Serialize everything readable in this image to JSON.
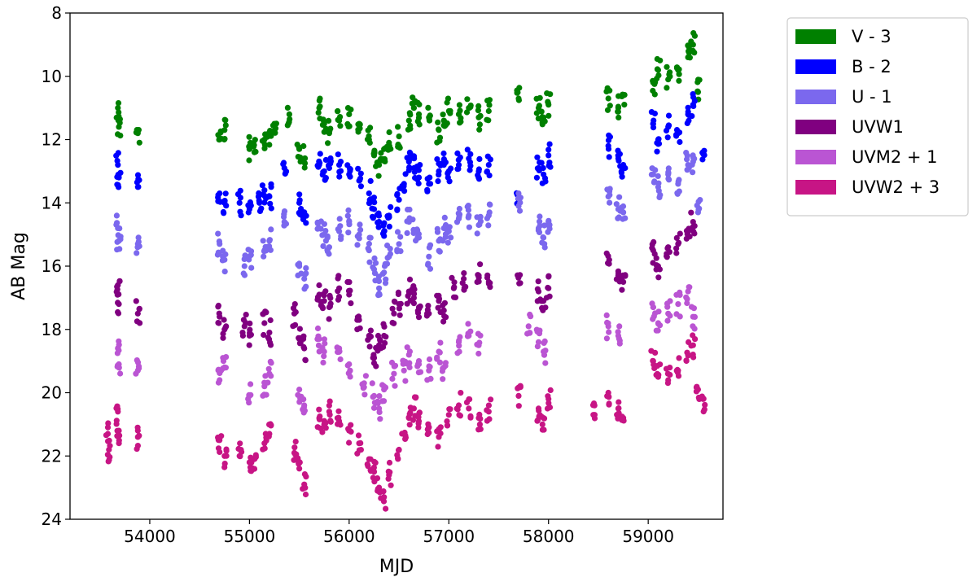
{
  "chart_data": {
    "type": "scatter",
    "title": "",
    "xlabel": "MJD",
    "ylabel": "AB Mag",
    "xlim": [
      53200,
      59750
    ],
    "ylim": [
      24,
      8
    ],
    "y_inverted": true,
    "grid": false,
    "legend_placement": "outside-right-top",
    "x_ticks": [
      54000,
      55000,
      56000,
      57000,
      58000,
      59000
    ],
    "y_ticks": [
      8,
      10,
      12,
      14,
      16,
      18,
      20,
      22,
      24
    ],
    "series": [
      {
        "name": "V - 3",
        "color": "#008000",
        "points": [
          [
            53680,
            11.0
          ],
          [
            53690,
            11.6
          ],
          [
            53880,
            11.8
          ],
          [
            54700,
            12.0
          ],
          [
            54750,
            11.7
          ],
          [
            55000,
            12.3
          ],
          [
            55050,
            12.4
          ],
          [
            55150,
            12.0
          ],
          [
            55200,
            11.8
          ],
          [
            55250,
            11.5
          ],
          [
            55400,
            11.2
          ],
          [
            55500,
            12.3
          ],
          [
            55550,
            12.6
          ],
          [
            55700,
            11.0
          ],
          [
            55750,
            11.5
          ],
          [
            55800,
            11.8
          ],
          [
            55900,
            11.4
          ],
          [
            56000,
            11.2
          ],
          [
            56100,
            11.5
          ],
          [
            56200,
            12.0
          ],
          [
            56250,
            12.5
          ],
          [
            56300,
            12.8
          ],
          [
            56350,
            12.3
          ],
          [
            56400,
            12.1
          ],
          [
            56500,
            11.9
          ],
          [
            56600,
            11.4
          ],
          [
            56650,
            11.0
          ],
          [
            56700,
            11.2
          ],
          [
            56800,
            11.3
          ],
          [
            56900,
            11.7
          ],
          [
            56950,
            11.4
          ],
          [
            57000,
            11.1
          ],
          [
            57100,
            11.2
          ],
          [
            57200,
            11.0
          ],
          [
            57300,
            11.3
          ],
          [
            57400,
            11.1
          ],
          [
            57700,
            10.7
          ],
          [
            57900,
            11.0
          ],
          [
            57950,
            11.3
          ],
          [
            58000,
            10.9
          ],
          [
            58600,
            10.7
          ],
          [
            58700,
            11.0
          ],
          [
            58750,
            10.6
          ],
          [
            59050,
            10.2
          ],
          [
            59100,
            9.8
          ],
          [
            59200,
            10.1
          ],
          [
            59300,
            9.8
          ],
          [
            59400,
            9.4
          ],
          [
            59450,
            9.0
          ],
          [
            59500,
            10.5
          ]
        ]
      },
      {
        "name": "B - 2",
        "color": "#0000ff",
        "points": [
          [
            53680,
            12.8
          ],
          [
            53690,
            13.2
          ],
          [
            53880,
            13.5
          ],
          [
            54700,
            13.7
          ],
          [
            54750,
            14.0
          ],
          [
            54900,
            14.0
          ],
          [
            55000,
            14.2
          ],
          [
            55100,
            14.0
          ],
          [
            55150,
            13.6
          ],
          [
            55200,
            13.8
          ],
          [
            55350,
            12.9
          ],
          [
            55500,
            14.0
          ],
          [
            55550,
            14.3
          ],
          [
            55700,
            12.8
          ],
          [
            55750,
            13.0
          ],
          [
            55800,
            12.9
          ],
          [
            55900,
            12.8
          ],
          [
            56000,
            13.1
          ],
          [
            56100,
            13.3
          ],
          [
            56200,
            13.7
          ],
          [
            56250,
            14.2
          ],
          [
            56300,
            14.6
          ],
          [
            56350,
            14.9
          ],
          [
            56400,
            14.4
          ],
          [
            56500,
            13.9
          ],
          [
            56550,
            13.4
          ],
          [
            56600,
            12.7
          ],
          [
            56650,
            12.9
          ],
          [
            56700,
            13.2
          ],
          [
            56800,
            13.4
          ],
          [
            56900,
            13.0
          ],
          [
            56950,
            12.8
          ],
          [
            57000,
            13.0
          ],
          [
            57100,
            12.8
          ],
          [
            57200,
            12.6
          ],
          [
            57300,
            13.0
          ],
          [
            57400,
            12.8
          ],
          [
            57700,
            14.0
          ],
          [
            57900,
            12.9
          ],
          [
            57950,
            13.1
          ],
          [
            58000,
            12.5
          ],
          [
            58600,
            12.2
          ],
          [
            58700,
            12.6
          ],
          [
            58750,
            12.8
          ],
          [
            59050,
            11.5
          ],
          [
            59100,
            12.0
          ],
          [
            59200,
            11.6
          ],
          [
            59300,
            11.8
          ],
          [
            59400,
            11.2
          ],
          [
            59450,
            10.9
          ],
          [
            59550,
            12.4
          ]
        ]
      },
      {
        "name": "U - 1",
        "color": "#7b68ee",
        "points": [
          [
            53680,
            14.8
          ],
          [
            53690,
            15.2
          ],
          [
            53880,
            15.3
          ],
          [
            54700,
            15.3
          ],
          [
            54750,
            15.8
          ],
          [
            54950,
            16.0
          ],
          [
            55000,
            15.7
          ],
          [
            55150,
            15.5
          ],
          [
            55200,
            15.2
          ],
          [
            55350,
            14.6
          ],
          [
            55500,
            16.0
          ],
          [
            55550,
            16.4
          ],
          [
            55700,
            14.8
          ],
          [
            55750,
            15.0
          ],
          [
            55800,
            15.4
          ],
          [
            55900,
            14.9
          ],
          [
            56000,
            14.6
          ],
          [
            56100,
            15.0
          ],
          [
            56200,
            15.5
          ],
          [
            56250,
            16.1
          ],
          [
            56300,
            16.7
          ],
          [
            56350,
            16.2
          ],
          [
            56400,
            15.7
          ],
          [
            56500,
            15.3
          ],
          [
            56600,
            14.6
          ],
          [
            56650,
            14.9
          ],
          [
            56700,
            15.1
          ],
          [
            56800,
            15.7
          ],
          [
            56900,
            15.2
          ],
          [
            56950,
            14.8
          ],
          [
            57000,
            14.9
          ],
          [
            57100,
            14.5
          ],
          [
            57200,
            14.4
          ],
          [
            57300,
            14.7
          ],
          [
            57400,
            14.4
          ],
          [
            57700,
            14.1
          ],
          [
            57900,
            14.8
          ],
          [
            57950,
            15.1
          ],
          [
            58000,
            14.6
          ],
          [
            58600,
            13.8
          ],
          [
            58700,
            14.2
          ],
          [
            58750,
            14.3
          ],
          [
            59050,
            13.1
          ],
          [
            59100,
            13.5
          ],
          [
            59200,
            13.1
          ],
          [
            59300,
            13.4
          ],
          [
            59400,
            12.8
          ],
          [
            59450,
            12.7
          ],
          [
            59500,
            14.3
          ]
        ]
      },
      {
        "name": "UVW1",
        "color": "#800080",
        "points": [
          [
            53680,
            16.6
          ],
          [
            53690,
            17.2
          ],
          [
            53880,
            17.5
          ],
          [
            54700,
            17.6
          ],
          [
            54750,
            18.0
          ],
          [
            54950,
            17.9
          ],
          [
            55000,
            18.2
          ],
          [
            55150,
            17.8
          ],
          [
            55200,
            18.1
          ],
          [
            55450,
            17.5
          ],
          [
            55500,
            18.3
          ],
          [
            55550,
            18.6
          ],
          [
            55700,
            16.9
          ],
          [
            55750,
            17.1
          ],
          [
            55800,
            17.3
          ],
          [
            55900,
            16.7
          ],
          [
            56000,
            16.9
          ],
          [
            56100,
            17.7
          ],
          [
            56200,
            18.2
          ],
          [
            56250,
            18.9
          ],
          [
            56300,
            18.5
          ],
          [
            56350,
            18.2
          ],
          [
            56450,
            17.5
          ],
          [
            56500,
            17.2
          ],
          [
            56600,
            16.8
          ],
          [
            56650,
            17.0
          ],
          [
            56700,
            17.3
          ],
          [
            56800,
            17.5
          ],
          [
            56900,
            17.1
          ],
          [
            56950,
            17.4
          ],
          [
            57050,
            16.7
          ],
          [
            57150,
            16.4
          ],
          [
            57300,
            16.3
          ],
          [
            57400,
            16.5
          ],
          [
            57700,
            16.3
          ],
          [
            57900,
            16.8
          ],
          [
            57950,
            17.1
          ],
          [
            58000,
            16.7
          ],
          [
            58600,
            15.9
          ],
          [
            58700,
            16.3
          ],
          [
            58750,
            16.5
          ],
          [
            59050,
            15.5
          ],
          [
            59100,
            16.0
          ],
          [
            59200,
            15.4
          ],
          [
            59300,
            15.3
          ],
          [
            59400,
            14.9
          ],
          [
            59450,
            14.6
          ]
        ]
      },
      {
        "name": "UVM2 + 1",
        "color": "#ba55d3",
        "points": [
          [
            53680,
            18.6
          ],
          [
            53690,
            19.1
          ],
          [
            53880,
            19.3
          ],
          [
            54700,
            19.6
          ],
          [
            54750,
            19.2
          ],
          [
            55000,
            20.1
          ],
          [
            55150,
            19.8
          ],
          [
            55200,
            19.4
          ],
          [
            55500,
            19.9
          ],
          [
            55550,
            20.4
          ],
          [
            55700,
            18.3
          ],
          [
            55750,
            18.7
          ],
          [
            55900,
            18.6
          ],
          [
            56000,
            19.1
          ],
          [
            56150,
            19.7
          ],
          [
            56250,
            20.1
          ],
          [
            56300,
            20.5
          ],
          [
            56350,
            19.9
          ],
          [
            56450,
            19.4
          ],
          [
            56550,
            19.3
          ],
          [
            56600,
            18.8
          ],
          [
            56700,
            19.0
          ],
          [
            56800,
            19.3
          ],
          [
            56900,
            18.7
          ],
          [
            56950,
            19.2
          ],
          [
            57100,
            18.4
          ],
          [
            57200,
            18.2
          ],
          [
            57300,
            18.5
          ],
          [
            57800,
            17.9
          ],
          [
            57900,
            18.4
          ],
          [
            57950,
            18.7
          ],
          [
            58600,
            17.9
          ],
          [
            58700,
            18.2
          ],
          [
            59050,
            17.3
          ],
          [
            59100,
            17.8
          ],
          [
            59200,
            17.5
          ],
          [
            59300,
            17.2
          ],
          [
            59400,
            16.8
          ],
          [
            59450,
            17.6
          ]
        ]
      },
      {
        "name": "UVW2 + 3",
        "color": "#c71585",
        "points": [
          [
            53580,
            21.3
          ],
          [
            53590,
            21.8
          ],
          [
            53680,
            20.6
          ],
          [
            53690,
            21.2
          ],
          [
            53880,
            21.4
          ],
          [
            54700,
            21.5
          ],
          [
            54750,
            22.0
          ],
          [
            54900,
            22.0
          ],
          [
            55000,
            22.2
          ],
          [
            55050,
            22.1
          ],
          [
            55150,
            21.6
          ],
          [
            55200,
            21.3
          ],
          [
            55450,
            21.9
          ],
          [
            55500,
            22.4
          ],
          [
            55550,
            22.9
          ],
          [
            55700,
            20.8
          ],
          [
            55750,
            21.0
          ],
          [
            55800,
            20.6
          ],
          [
            55900,
            20.9
          ],
          [
            56000,
            21.2
          ],
          [
            56100,
            21.6
          ],
          [
            56200,
            22.1
          ],
          [
            56250,
            22.5
          ],
          [
            56300,
            23.0
          ],
          [
            56350,
            23.3
          ],
          [
            56400,
            22.6
          ],
          [
            56500,
            21.8
          ],
          [
            56550,
            21.3
          ],
          [
            56600,
            20.8
          ],
          [
            56650,
            20.5
          ],
          [
            56700,
            20.9
          ],
          [
            56800,
            21.1
          ],
          [
            56900,
            21.4
          ],
          [
            57000,
            20.7
          ],
          [
            57100,
            20.4
          ],
          [
            57200,
            20.5
          ],
          [
            57300,
            20.8
          ],
          [
            57400,
            20.6
          ],
          [
            57700,
            20.1
          ],
          [
            57900,
            20.5
          ],
          [
            57950,
            20.8
          ],
          [
            58000,
            20.2
          ],
          [
            58450,
            20.7
          ],
          [
            58600,
            20.0
          ],
          [
            58700,
            20.5
          ],
          [
            58750,
            20.8
          ],
          [
            59050,
            19.0
          ],
          [
            59100,
            19.5
          ],
          [
            59200,
            19.6
          ],
          [
            59300,
            19.3
          ],
          [
            59400,
            18.8
          ],
          [
            59450,
            18.5
          ],
          [
            59500,
            19.9
          ],
          [
            59550,
            20.2
          ]
        ]
      }
    ]
  }
}
